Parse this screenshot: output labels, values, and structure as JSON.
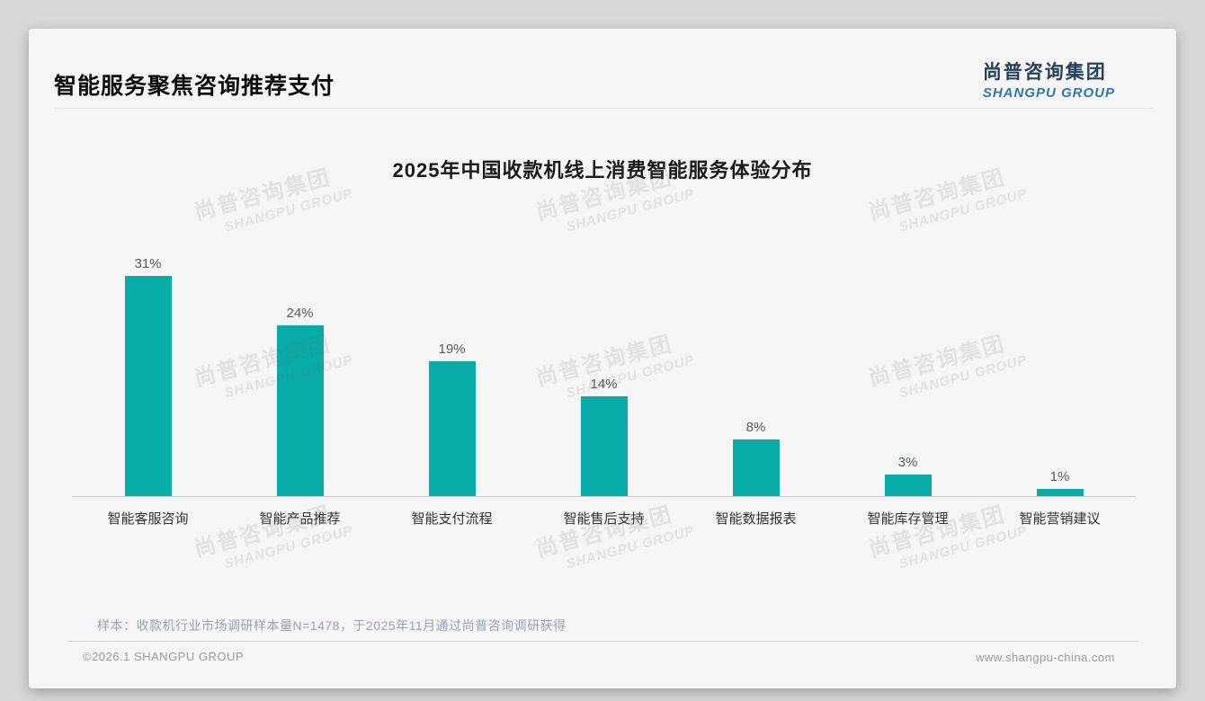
{
  "page": {
    "title": "智能服务聚焦咨询推荐支付",
    "logo": {
      "cn": "尚普咨询集团",
      "en": "SHANGPU GROUP"
    },
    "note": "样本：收款机行业市场调研样本量N=1478，于2025年11月通过尚普咨询调研获得",
    "footer": {
      "left": "©2026.1 SHANGPU GROUP",
      "right": "www.shangpu-china.com"
    },
    "watermark": {
      "cn": "尚普咨询集团",
      "en": "SHANGPU GROUP"
    }
  },
  "chart_data": {
    "type": "bar",
    "title": "2025年中国收款机线上消费智能服务体验分布",
    "categories": [
      "智能客服咨询",
      "智能产品推荐",
      "智能支付流程",
      "智能售后支持",
      "智能数据报表",
      "智能库存管理",
      "智能营销建议"
    ],
    "values": [
      31,
      24,
      19,
      14,
      8,
      3,
      1
    ],
    "data_labels": [
      "31%",
      "24%",
      "19%",
      "14%",
      "8%",
      "3%",
      "1%"
    ],
    "unit": "%",
    "bar_color": "#09ada7",
    "ylim": [
      0,
      35
    ],
    "grid": false,
    "legend": "none",
    "xlabel": "",
    "ylabel": ""
  }
}
